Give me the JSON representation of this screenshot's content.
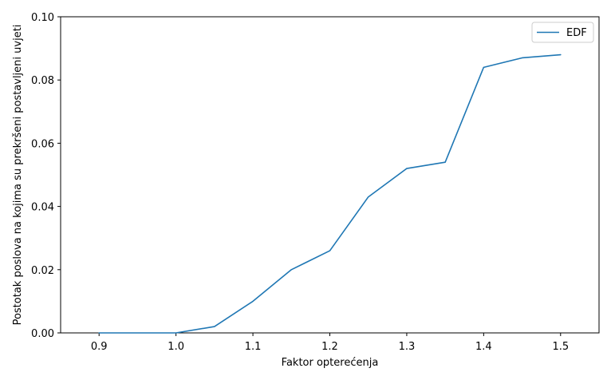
{
  "chart_data": {
    "type": "line",
    "title": "",
    "xlabel": "Faktor opterećenja",
    "ylabel": "Postotak poslova na kojima su prekršeni postavljeni uvjeti",
    "x": [
      0.9,
      0.95,
      1.0,
      1.05,
      1.1,
      1.15,
      1.2,
      1.25,
      1.3,
      1.35,
      1.4,
      1.45,
      1.5
    ],
    "series": [
      {
        "name": "EDF",
        "values": [
          0.0,
          0.0,
          0.0,
          0.002,
          0.01,
          0.02,
          0.026,
          0.043,
          0.052,
          0.054,
          0.084,
          0.087,
          0.088
        ],
        "color": "#1f77b4"
      }
    ],
    "xlim": [
      0.85,
      1.55
    ],
    "ylim": [
      0.0,
      0.1
    ],
    "xticks": [
      0.9,
      1.0,
      1.1,
      1.2,
      1.3,
      1.4,
      1.5
    ],
    "xtick_labels": [
      "0.9",
      "1.0",
      "1.1",
      "1.2",
      "1.3",
      "1.4",
      "1.5"
    ],
    "yticks": [
      0.0,
      0.02,
      0.04,
      0.06,
      0.08,
      0.1
    ],
    "ytick_labels": [
      "0.00",
      "0.02",
      "0.04",
      "0.06",
      "0.08",
      "0.10"
    ],
    "grid": false,
    "legend_position": "top-right"
  }
}
